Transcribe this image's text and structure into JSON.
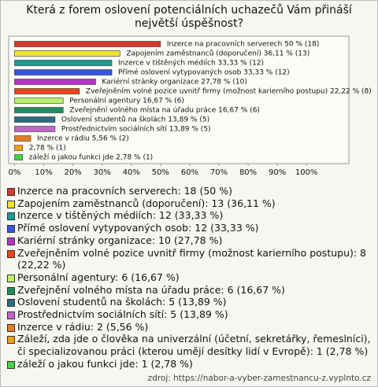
{
  "chart_data": {
    "type": "bar",
    "orientation": "horizontal",
    "title": "Která z forem oslovení potenciálních uchazečů Vám přináší největší úspěšnost?",
    "values": [
      50,
      36.11,
      33.33,
      33.33,
      27.78,
      22.22,
      16.67,
      16.67,
      13.89,
      13.89,
      5.56,
      2.78,
      2.78
    ],
    "value_labels": [
      "Inzerce na pracovních serverech 50 % (18)",
      "Zapojením zaměstnanců (doporučení) 36,11 % (13)",
      "Inzerce v tištěných médiích 33,33 % (12)",
      "Přímé oslovení vytypovaných osob 33,33 % (12)",
      "Kariérní stránky organizace 27,78 % (10)",
      "Zveřejněním volné pozice uvnitř firmy (možnost karierního postupu) 22,22 % (8)",
      "Personální agentury 16,67 % (6)",
      "Zveřejnění volného místa na úřadu práce 16,67 % (6)",
      "Oslovení studentů na školách 13,89 % (5)",
      "Prostřednictvím sociálních sítí 13,89 % (5)",
      "Inzerce v rádiu 5,56 % (2)",
      "2,78 % (1)",
      "záleží o jakou funkci jde 2,78 % (1)"
    ],
    "colors": [
      "#d33a2c",
      "#f2e22a",
      "#1d9a93",
      "#3355e0",
      "#b235c4",
      "#e4461a",
      "#b9f26a",
      "#248a63",
      "#2c6b80",
      "#c166c8",
      "#e47d22",
      "#f0a21a",
      "#49d047"
    ],
    "legend_labels": [
      "Inzerce na pracovních serverech: 18 (50 %)",
      "Zapojením zaměstnanců (doporučení): 13 (36,11 %)",
      "Inzerce v tištěných médiích: 12 (33,33 %)",
      "Přímé oslovení vytypovaných osob: 12 (33,33 %)",
      "Kariérní stránky organizace: 10 (27,78 %)",
      "Zveřejněním volné pozice uvnitř firmy (možnost karierního postupu): 8 (22,22 %)",
      "Personální agentury: 6 (16,67 %)",
      "Zveřejnění volného místa na úřadu práce: 6 (16,67 %)",
      "Oslovení studentů na školách: 5 (13,89 %)",
      "Prostřednictvím sociálních sítí: 5 (13,89 %)",
      "Inzerce v rádiu: 2 (5,56 %)",
      "Záleží, zda jde o člověka na univerzální (účetní, sekretářky, řemeslníci), či specializovanou práci (kterou umějí desítky lidí v Evropě): 1 (2,78 %)",
      "záleží o jakou funkci jde: 1 (2,78 %)"
    ],
    "xlim": [
      -2,
      114.5
    ],
    "xticks": [
      {
        "value": 0,
        "label": "0%"
      },
      {
        "value": 10,
        "label": "10%"
      },
      {
        "value": 20,
        "label": "20%"
      },
      {
        "value": 30,
        "label": "30%"
      },
      {
        "value": 40,
        "label": "40%"
      },
      {
        "value": 50,
        "label": "50%"
      },
      {
        "value": 60,
        "label": "60%"
      },
      {
        "value": 70,
        "label": "70%"
      },
      {
        "value": 80,
        "label": "80%"
      },
      {
        "value": 90,
        "label": "90%"
      },
      {
        "value": 100,
        "label": "100%"
      }
    ],
    "source": "zdroj: https://nabor-a-vyber-zamestnancu-z.vyplnto.cz"
  }
}
